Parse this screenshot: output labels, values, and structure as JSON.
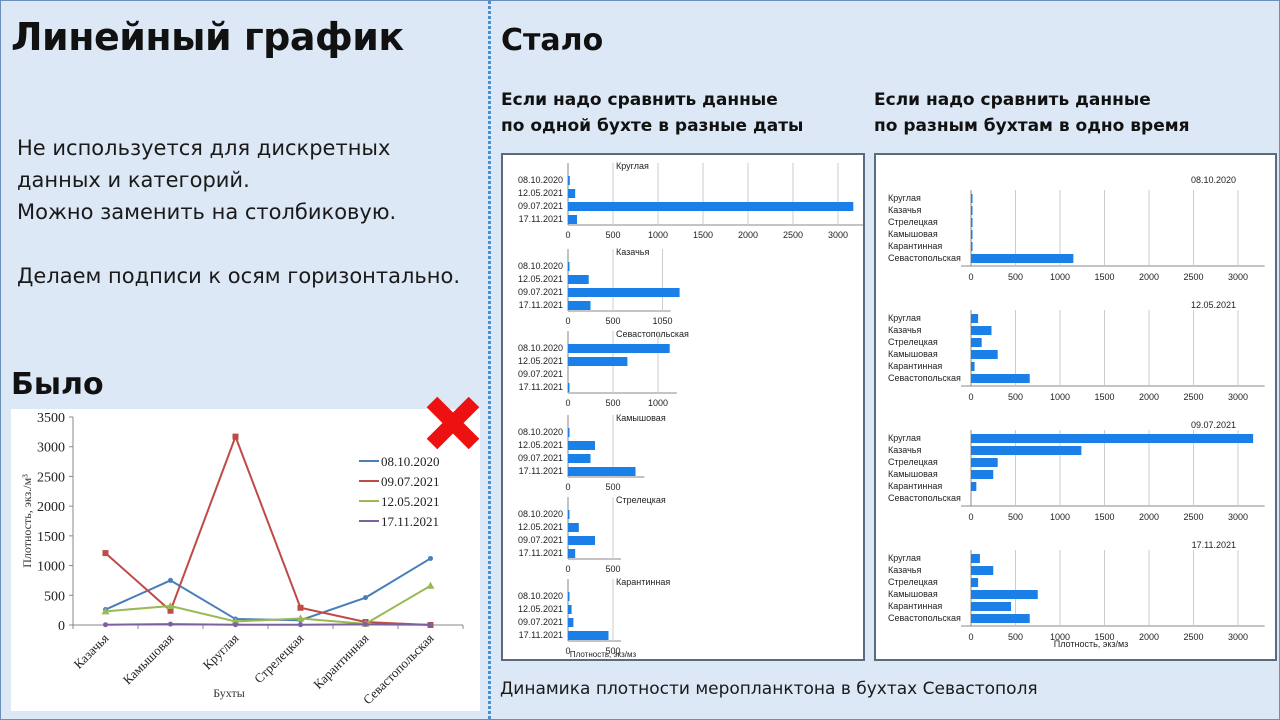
{
  "left": {
    "title": "Линейный график",
    "description_lines": [
      "Не используется для дискретных",
      "данных и категорий.",
      "Можно заменить на столбиковую.",
      "",
      "Делаем подписи к осям горизонтально."
    ],
    "was_heading": "Было",
    "reject_icon": "red-cross-icon"
  },
  "right": {
    "title": "Стало",
    "subtitle_by_bay": [
      "Если надо сравнить данные",
      "по одной бухте в разные даты"
    ],
    "subtitle_by_date": [
      "Если надо сравнить данные",
      "по разным бухтам в одно время"
    ],
    "caption": "Динамика плотности меропланктона в бухтах Севастополя"
  },
  "colors": {
    "background": "#dce8f5",
    "bar": "#1a7fe6",
    "divider": "#4a90d0",
    "reject": "#ee1111",
    "series_08_10_2020": "#4a7ebb",
    "series_09_07_2021": "#be4b48",
    "series_12_05_2021": "#98b954",
    "series_17_11_2021": "#7d60a0"
  },
  "chart_data": [
    {
      "id": "was",
      "type": "line",
      "title": "",
      "xlabel": "Бухты",
      "ylabel": "Плотность, экз./м³",
      "ylim": [
        0,
        3500
      ],
      "yticks": [
        0,
        500,
        1000,
        1500,
        2000,
        2500,
        3000,
        3500
      ],
      "categories": [
        "Казачья",
        "Камышовая",
        "Круглая",
        "Стрелецкая",
        "Карантинная",
        "Севастопольская"
      ],
      "legend_position": "right",
      "series": [
        {
          "name": "08.10.2020",
          "values": [
            260,
            750,
            100,
            80,
            460,
            1120
          ]
        },
        {
          "name": "09.07.2021",
          "values": [
            1210,
            240,
            3170,
            290,
            50,
            0
          ]
        },
        {
          "name": "12.05.2021",
          "values": [
            230,
            320,
            60,
            110,
            20,
            660
          ]
        },
        {
          "name": "17.11.2021",
          "values": [
            5,
            15,
            5,
            5,
            10,
            5
          ]
        }
      ]
    },
    {
      "id": "by-bay",
      "type": "bar",
      "orientation": "horizontal",
      "xlabel": "Плотность, экз/мз",
      "categories": [
        "08.10.2020",
        "12.05.2021",
        "09.07.2021",
        "17.11.2021"
      ],
      "panels": [
        {
          "title": "Круглая",
          "xticks": [
            0,
            500,
            1000,
            1500,
            2000,
            2500,
            3000
          ],
          "xmax": 3200,
          "values": [
            20,
            80,
            3170,
            100
          ]
        },
        {
          "title": "Казачья",
          "xticks": [
            0,
            500,
            1050
          ],
          "xmax": 1050,
          "values": [
            5,
            230,
            1240,
            250
          ]
        },
        {
          "title": "Севастопольская",
          "xticks": [
            0,
            500,
            1000
          ],
          "xmax": 1120,
          "values": [
            1130,
            660,
            0,
            10
          ]
        },
        {
          "title": "Камышовая",
          "xticks": [
            0,
            500
          ],
          "xmax": 760,
          "values": [
            10,
            300,
            250,
            750
          ]
        },
        {
          "title": "Стрелецкая",
          "xticks": [
            0,
            500
          ],
          "xmax": 500,
          "values": [
            15,
            120,
            300,
            80
          ]
        },
        {
          "title": "Карантинная",
          "xticks": [
            0,
            500
          ],
          "xmax": 500,
          "values": [
            10,
            40,
            60,
            450
          ]
        }
      ]
    },
    {
      "id": "by-date",
      "type": "bar",
      "orientation": "horizontal",
      "xlabel": "Плотность, экз/мз",
      "xticks": [
        0,
        500,
        1000,
        1500,
        2000,
        2500,
        3000
      ],
      "xmax": 3300,
      "categories": [
        "Круглая",
        "Казачья",
        "Стрелецкая",
        "Камышовая",
        "Карантинная",
        "Севастопольская"
      ],
      "panels": [
        {
          "title": "08.10.2020",
          "values": [
            5,
            5,
            5,
            5,
            5,
            1150
          ]
        },
        {
          "title": "12.05.2021",
          "values": [
            80,
            230,
            120,
            300,
            40,
            660
          ]
        },
        {
          "title": "09.07.2021",
          "values": [
            3170,
            1240,
            300,
            250,
            60,
            0
          ]
        },
        {
          "title": "17.11.2021",
          "values": [
            100,
            250,
            80,
            750,
            450,
            660
          ]
        }
      ]
    }
  ]
}
